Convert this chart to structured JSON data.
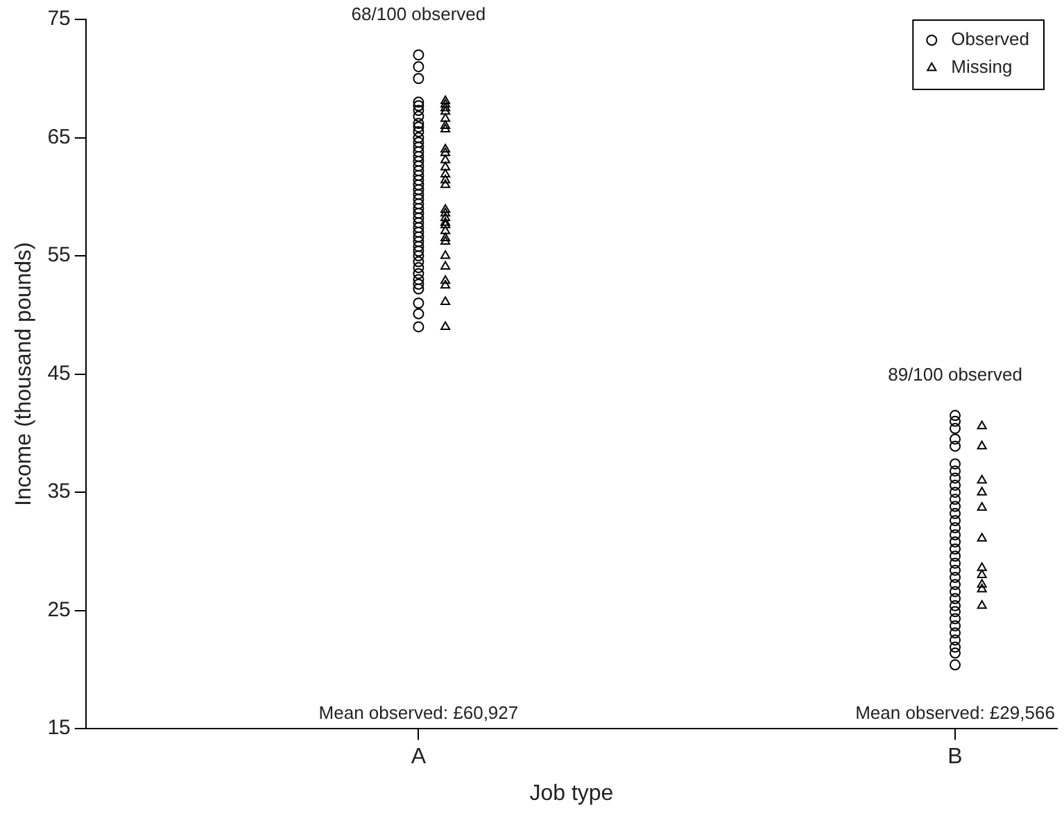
{
  "chart_data": {
    "type": "scatter",
    "xlabel": "Job type",
    "ylabel": "Income (thousand pounds)",
    "categories": [
      "A",
      "B"
    ],
    "ylim": [
      15,
      75
    ],
    "yticks": [
      15,
      25,
      35,
      45,
      55,
      65,
      75
    ],
    "grid": false,
    "legend": "top right",
    "series": [
      {
        "name": "Observed",
        "color": "#000000",
        "marker": "circle",
        "x": [
          "A",
          "A",
          "A",
          "A",
          "A",
          "A",
          "A",
          "A",
          "A",
          "A",
          "A",
          "A",
          "A",
          "A",
          "A",
          "A",
          "A",
          "A",
          "A",
          "A",
          "A",
          "A",
          "A",
          "A",
          "A",
          "A",
          "A",
          "A",
          "A",
          "A",
          "A",
          "A",
          "A",
          "A",
          "A",
          "A",
          "A",
          "A",
          "A",
          "A",
          "A",
          "A",
          "A",
          "A",
          "A",
          "B",
          "B",
          "B",
          "B",
          "B",
          "B",
          "B",
          "B",
          "B",
          "B",
          "B",
          "B",
          "B",
          "B",
          "B",
          "B",
          "B",
          "B",
          "B",
          "B",
          "B",
          "B",
          "B",
          "B",
          "B",
          "B",
          "B",
          "B",
          "B",
          "B",
          "B",
          "B",
          "B",
          "B"
        ],
        "values": [
          72.0,
          71.0,
          70.0,
          68.0,
          67.7,
          67.3,
          66.8,
          66.2,
          65.9,
          65.5,
          65.0,
          64.6,
          64.2,
          63.8,
          63.4,
          63.0,
          62.6,
          62.2,
          61.8,
          61.4,
          61.0,
          60.6,
          60.2,
          59.8,
          59.4,
          59.0,
          58.6,
          58.2,
          57.8,
          57.4,
          57.0,
          56.6,
          56.2,
          55.8,
          55.4,
          55.0,
          54.5,
          54.0,
          53.5,
          53.0,
          52.6,
          52.2,
          51.0,
          50.1,
          49.0,
          41.5,
          41.0,
          40.4,
          39.5,
          38.9,
          37.4,
          36.8,
          36.2,
          35.6,
          35.0,
          34.4,
          33.8,
          33.2,
          32.6,
          32.0,
          31.4,
          30.8,
          30.2,
          29.6,
          29.0,
          28.4,
          27.8,
          27.2,
          26.6,
          26.0,
          25.4,
          24.9,
          24.3,
          23.7,
          23.1,
          22.5,
          21.9,
          21.4,
          20.4
        ]
      },
      {
        "name": "Missing",
        "color": "#000000",
        "marker": "triangle",
        "x": [
          "A",
          "A",
          "A",
          "A",
          "A",
          "A",
          "A",
          "A",
          "A",
          "A",
          "A",
          "A",
          "A",
          "A",
          "A",
          "A",
          "A",
          "A",
          "A",
          "A",
          "A",
          "A",
          "A",
          "A",
          "A",
          "A",
          "A",
          "A",
          "B",
          "B",
          "B",
          "B",
          "B",
          "B",
          "B",
          "B",
          "B",
          "B",
          "B"
        ],
        "values": [
          68.1,
          67.8,
          67.5,
          67.2,
          66.6,
          66.0,
          65.7,
          64.0,
          63.7,
          63.1,
          62.5,
          61.9,
          61.4,
          61.0,
          58.9,
          58.6,
          58.2,
          57.8,
          57.6,
          57.1,
          56.5,
          56.2,
          55.0,
          54.1,
          52.9,
          52.5,
          51.1,
          49.0,
          40.6,
          38.9,
          36.0,
          35.0,
          33.7,
          31.1,
          28.6,
          28.0,
          27.2,
          26.8,
          25.4
        ]
      }
    ],
    "annotations": [
      "68/100 observed",
      "89/100 observed",
      "Mean observed: £60,927",
      "Mean observed: £29,566"
    ]
  }
}
